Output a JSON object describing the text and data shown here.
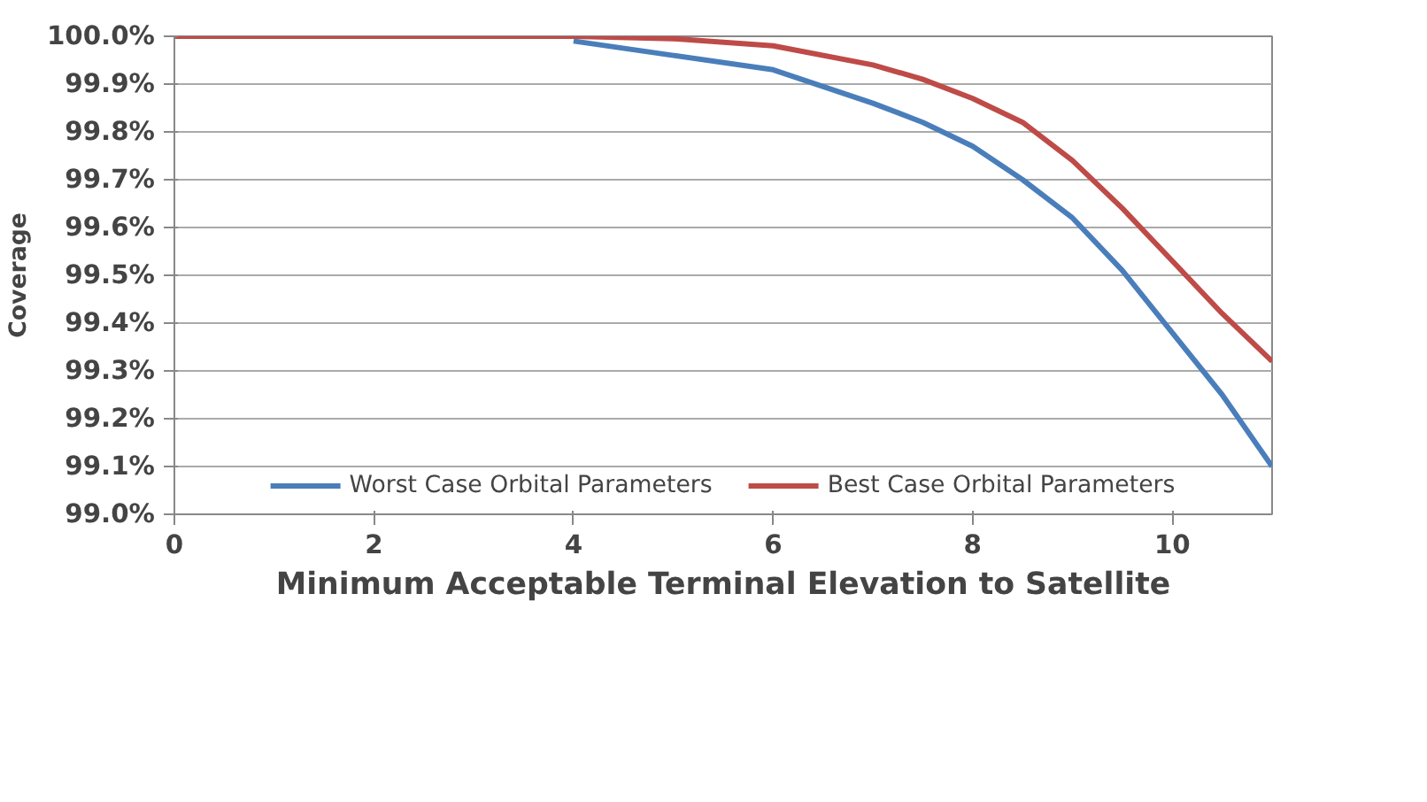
{
  "chart_data": {
    "type": "line",
    "xlabel": "Minimum Acceptable Terminal Elevation to Satellite",
    "ylabel": "Coverage",
    "x": [
      0,
      1,
      2,
      3,
      4,
      5,
      6,
      7,
      7.5,
      8,
      8.5,
      9,
      9.5,
      10,
      10.5,
      11
    ],
    "series": [
      {
        "name": "Worst Case Orbital Parameters",
        "color": "#4a7ebb",
        "values": [
          null,
          null,
          null,
          null,
          99.99,
          99.96,
          99.93,
          99.86,
          99.82,
          99.77,
          99.7,
          99.62,
          99.51,
          99.38,
          99.25,
          99.1
        ]
      },
      {
        "name": "Best Case Orbital Parameters",
        "color": "#be4b48",
        "values": [
          100.0,
          100.0,
          100.0,
          100.0,
          100.0,
          99.995,
          99.98,
          99.94,
          99.91,
          99.87,
          99.82,
          99.74,
          99.64,
          99.53,
          99.42,
          99.32
        ]
      }
    ],
    "xlim": [
      0,
      11
    ],
    "xticks": [
      0,
      2,
      4,
      6,
      8,
      10
    ],
    "ylim": [
      99.0,
      100.0
    ],
    "yticks": [
      {
        "value": 99.0,
        "label": "99.0%"
      },
      {
        "value": 99.1,
        "label": "99.1%"
      },
      {
        "value": 99.2,
        "label": "99.2%"
      },
      {
        "value": 99.3,
        "label": "99.3%"
      },
      {
        "value": 99.4,
        "label": "99.4%"
      },
      {
        "value": 99.5,
        "label": "99.5%"
      },
      {
        "value": 99.6,
        "label": "99.6%"
      },
      {
        "value": 99.7,
        "label": "99.7%"
      },
      {
        "value": 99.8,
        "label": "99.8%"
      },
      {
        "value": 99.9,
        "label": "99.9%"
      },
      {
        "value": 100.0,
        "label": "100.0%"
      }
    ],
    "grid": "y",
    "legend": "bottom",
    "marker": "none",
    "line_style": "solid"
  }
}
